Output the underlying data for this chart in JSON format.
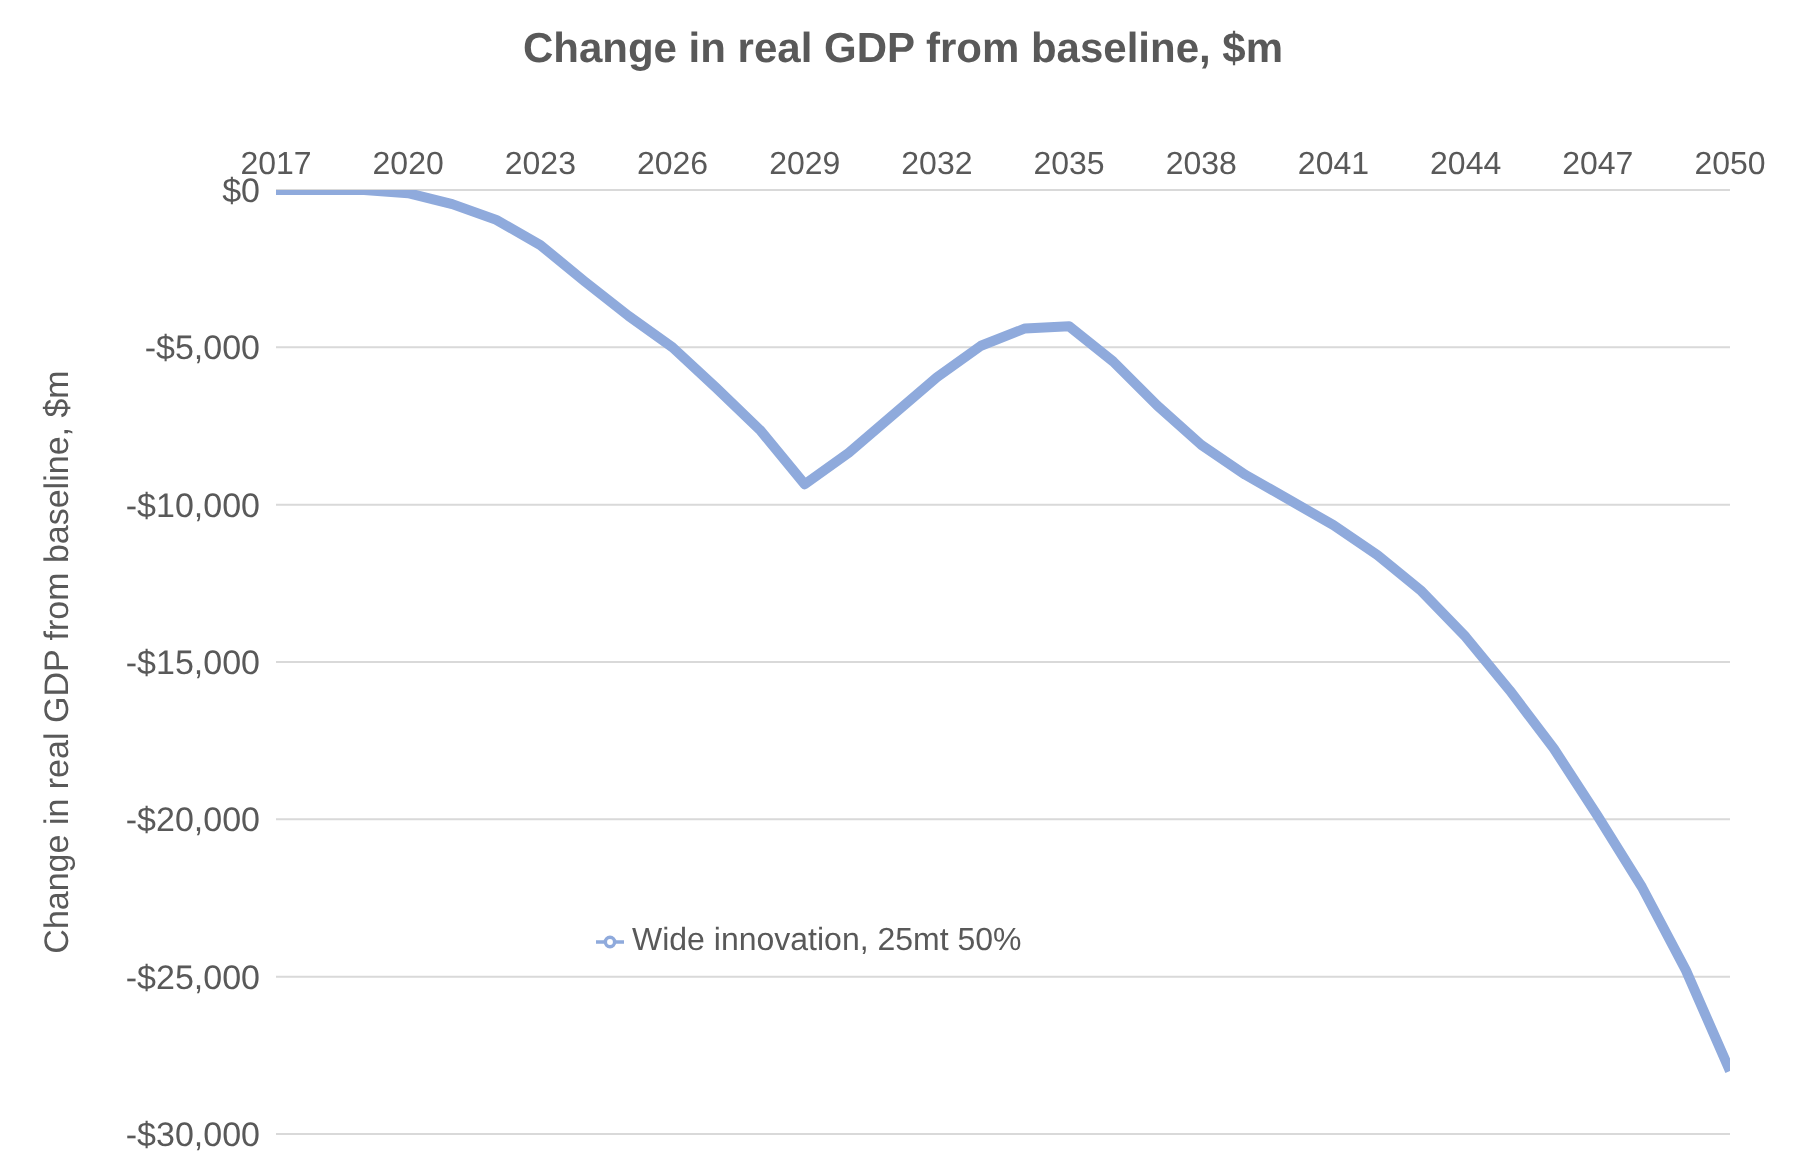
{
  "chart_data": {
    "type": "line",
    "title": "Change in real GDP from baseline, $m",
    "ylabel": "Change in real GDP from baseline, $m",
    "x": [
      2017,
      2018,
      2019,
      2020,
      2021,
      2022,
      2023,
      2024,
      2025,
      2026,
      2027,
      2028,
      2029,
      2030,
      2031,
      2032,
      2033,
      2034,
      2035,
      2036,
      2037,
      2038,
      2039,
      2040,
      2041,
      2042,
      2043,
      2044,
      2045,
      2046,
      2047,
      2048,
      2049,
      2050
    ],
    "series": [
      {
        "name": "Wide innovation, 25mt 50%",
        "color": "#8faadc",
        "values": [
          0,
          0,
          0,
          -100,
          -450,
          -950,
          -1750,
          -2900,
          -4000,
          -5000,
          -6300,
          -7650,
          -9350,
          -8350,
          -7150,
          -5950,
          -4950,
          -4400,
          -4330,
          -5450,
          -6850,
          -8100,
          -9050,
          -9850,
          -10650,
          -11600,
          -12750,
          -14200,
          -15900,
          -17750,
          -19900,
          -22150,
          -24800,
          -28000
        ]
      }
    ],
    "xlim": [
      2017,
      2050
    ],
    "xticks": [
      2017,
      2020,
      2023,
      2026,
      2029,
      2032,
      2035,
      2038,
      2041,
      2044,
      2047,
      2050
    ],
    "ylim": [
      -30000,
      0
    ],
    "yticks": [
      {
        "value": -30000,
        "label": "-$30,000"
      },
      {
        "value": -25000,
        "label": "-$25,000"
      },
      {
        "value": -20000,
        "label": "-$20,000"
      },
      {
        "value": -15000,
        "label": "-$15,000"
      },
      {
        "value": -10000,
        "label": "-$10,000"
      },
      {
        "value": -5000,
        "label": "-$5,000"
      },
      {
        "value": 0,
        "label": "$0"
      }
    ],
    "grid": "y",
    "legend": "left",
    "marker": "none",
    "line_style": "solid"
  }
}
